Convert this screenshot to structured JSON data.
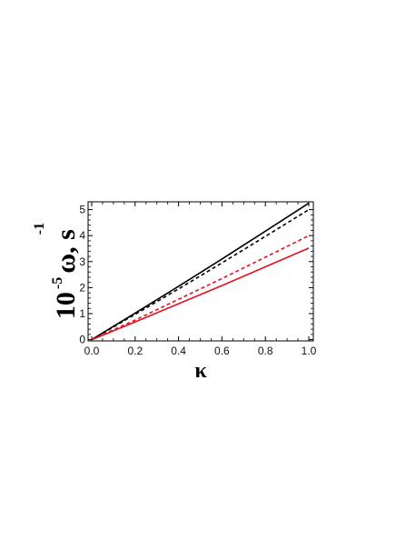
{
  "chart_data": {
    "type": "line",
    "xlabel": "κ",
    "ylabel": "10",
    "ylabel_exponent": "-5",
    "ylabel_rest": "ω, s",
    "ylabel_rest_exponent": "-1",
    "xlim": [
      0.0,
      1.0
    ],
    "ylim": [
      -0.05,
      5.3
    ],
    "xticks": [
      "0.0",
      "0.2",
      "0.4",
      "0.6",
      "0.8",
      "1.0"
    ],
    "yticks": [
      "0",
      "1",
      "2",
      "3",
      "4",
      "5"
    ],
    "grid": false,
    "series": [
      {
        "color": "#000000",
        "style": "solid",
        "x": [
          0,
          0.2,
          0.4,
          0.6,
          0.8,
          1.0
        ],
        "y": [
          0,
          1.02,
          2.05,
          3.1,
          4.17,
          5.25
        ]
      },
      {
        "color": "#000000",
        "style": "dashed",
        "x": [
          0,
          0.2,
          0.4,
          0.6,
          0.8,
          1.0
        ],
        "y": [
          0,
          0.97,
          1.95,
          2.95,
          3.97,
          5.0
        ]
      },
      {
        "color": "#e8101e",
        "style": "dashed",
        "x": [
          0,
          0.2,
          0.4,
          0.6,
          0.8,
          1.0
        ],
        "y": [
          0,
          0.75,
          1.55,
          2.35,
          3.17,
          4.0
        ]
      },
      {
        "color": "#e8101e",
        "style": "solid",
        "x": [
          0,
          0.2,
          0.4,
          0.6,
          0.8,
          1.0
        ],
        "y": [
          0,
          0.68,
          1.38,
          2.08,
          2.8,
          3.52
        ]
      }
    ]
  }
}
